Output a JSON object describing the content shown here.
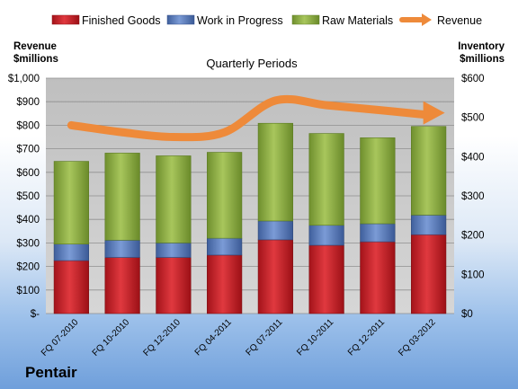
{
  "company": "Pentair",
  "chart_data": {
    "type": "bar",
    "stacked": true,
    "title": "Quarterly Periods",
    "ylabel_left": [
      "Revenue",
      "$millions"
    ],
    "ylabel_right": [
      "Inventory",
      "$millions"
    ],
    "categories": [
      "FQ 07-2010",
      "FQ 10-2010",
      "FQ 12-2010",
      "FQ 04-2011",
      "FQ 07-2011",
      "FQ 10-2011",
      "FQ 12-2011",
      "FQ 03-2012"
    ],
    "ylim_left": [
      0,
      1000
    ],
    "ylim_right": [
      0,
      600
    ],
    "left_ticks": [
      "$-",
      "$100",
      "$200",
      "$300",
      "$400",
      "$500",
      "$600",
      "$700",
      "$800",
      "$900",
      "$1,000"
    ],
    "right_ticks": [
      "$0",
      "$100",
      "$200",
      "$300",
      "$400",
      "$500",
      "$600"
    ],
    "legend_position": "top",
    "grid": true,
    "series": [
      {
        "name": "Finished Goods",
        "axis": "right",
        "color": "#c8232a",
        "values": [
          135,
          143,
          143,
          149,
          188,
          174,
          183,
          201
        ]
      },
      {
        "name": "Work in Progress",
        "axis": "right",
        "color": "#5b7fbf",
        "values": [
          42,
          44,
          37,
          43,
          48,
          51,
          46,
          50
        ]
      },
      {
        "name": "Raw Materials",
        "axis": "right",
        "color": "#93b347",
        "values": [
          211,
          222,
          222,
          219,
          249,
          234,
          219,
          226
        ]
      },
      {
        "name": "Revenue",
        "axis": "left",
        "type": "line",
        "color": "#ee8a3a",
        "values": [
          800,
          770,
          750,
          770,
          905,
          885,
          865,
          845
        ]
      }
    ]
  }
}
